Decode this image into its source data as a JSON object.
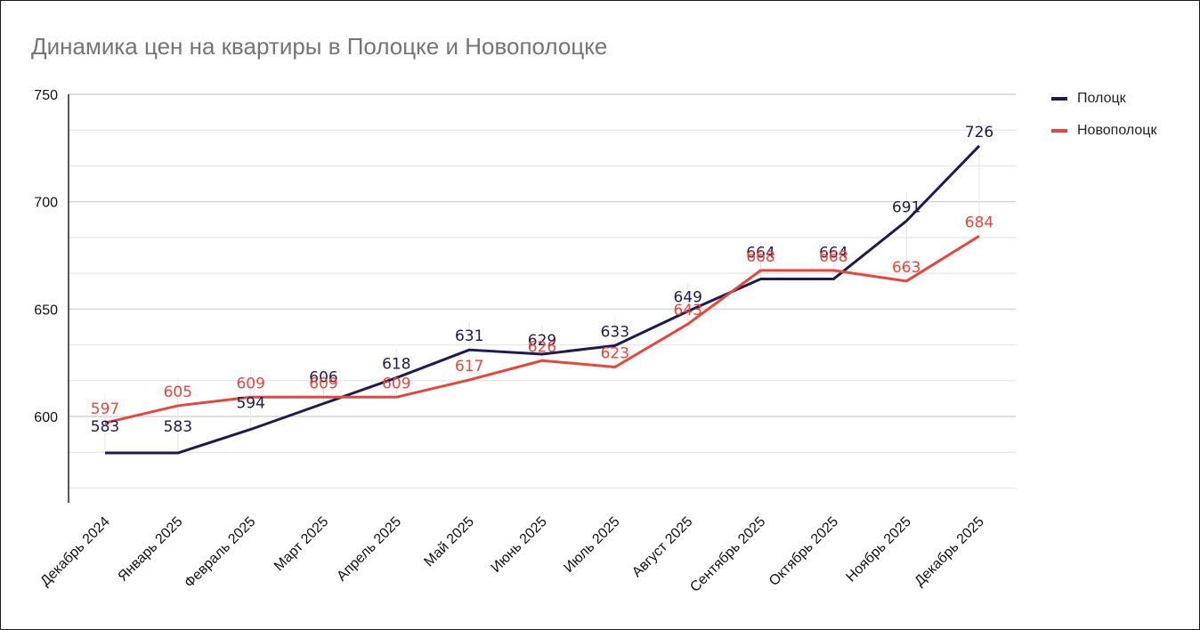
{
  "title": "Динамика цен на квартиры в Полоцке и Новополоцке",
  "legend": [
    {
      "label": "Полоцк",
      "color": "#1f1a4f"
    },
    {
      "label": "Новополоцк",
      "color": "#e8463a"
    }
  ],
  "chart_data": {
    "type": "line",
    "title": "Динамика цен на квартиры в Полоцке и Новополоцке",
    "xlabel": "",
    "ylabel": "",
    "categories": [
      "Декабрь 2024",
      "Январь 2025",
      "Февраль 2025",
      "Март 2025",
      "Апрель 2025",
      "Май 2025",
      "Июнь 2025",
      "Июль 2025",
      "Август 2025",
      "Сентябрь 2025",
      "Октябрь 2025",
      "Ноябрь 2025",
      "Декабрь 2025"
    ],
    "series": [
      {
        "name": "Полоцк",
        "color": "#1f1a4f",
        "values": [
          583,
          583,
          594,
          606,
          618,
          631,
          629,
          633,
          649,
          664,
          664,
          691,
          726
        ]
      },
      {
        "name": "Новополоцк",
        "color": "#e8463a",
        "values": [
          597,
          605,
          609,
          609,
          609,
          617,
          626,
          623,
          643,
          668,
          668,
          663,
          684
        ]
      }
    ],
    "yticks": [
      600,
      650,
      700,
      750
    ],
    "ylim": [
      560,
      750
    ],
    "grid": true,
    "legend_position": "right",
    "data_labels": true
  }
}
